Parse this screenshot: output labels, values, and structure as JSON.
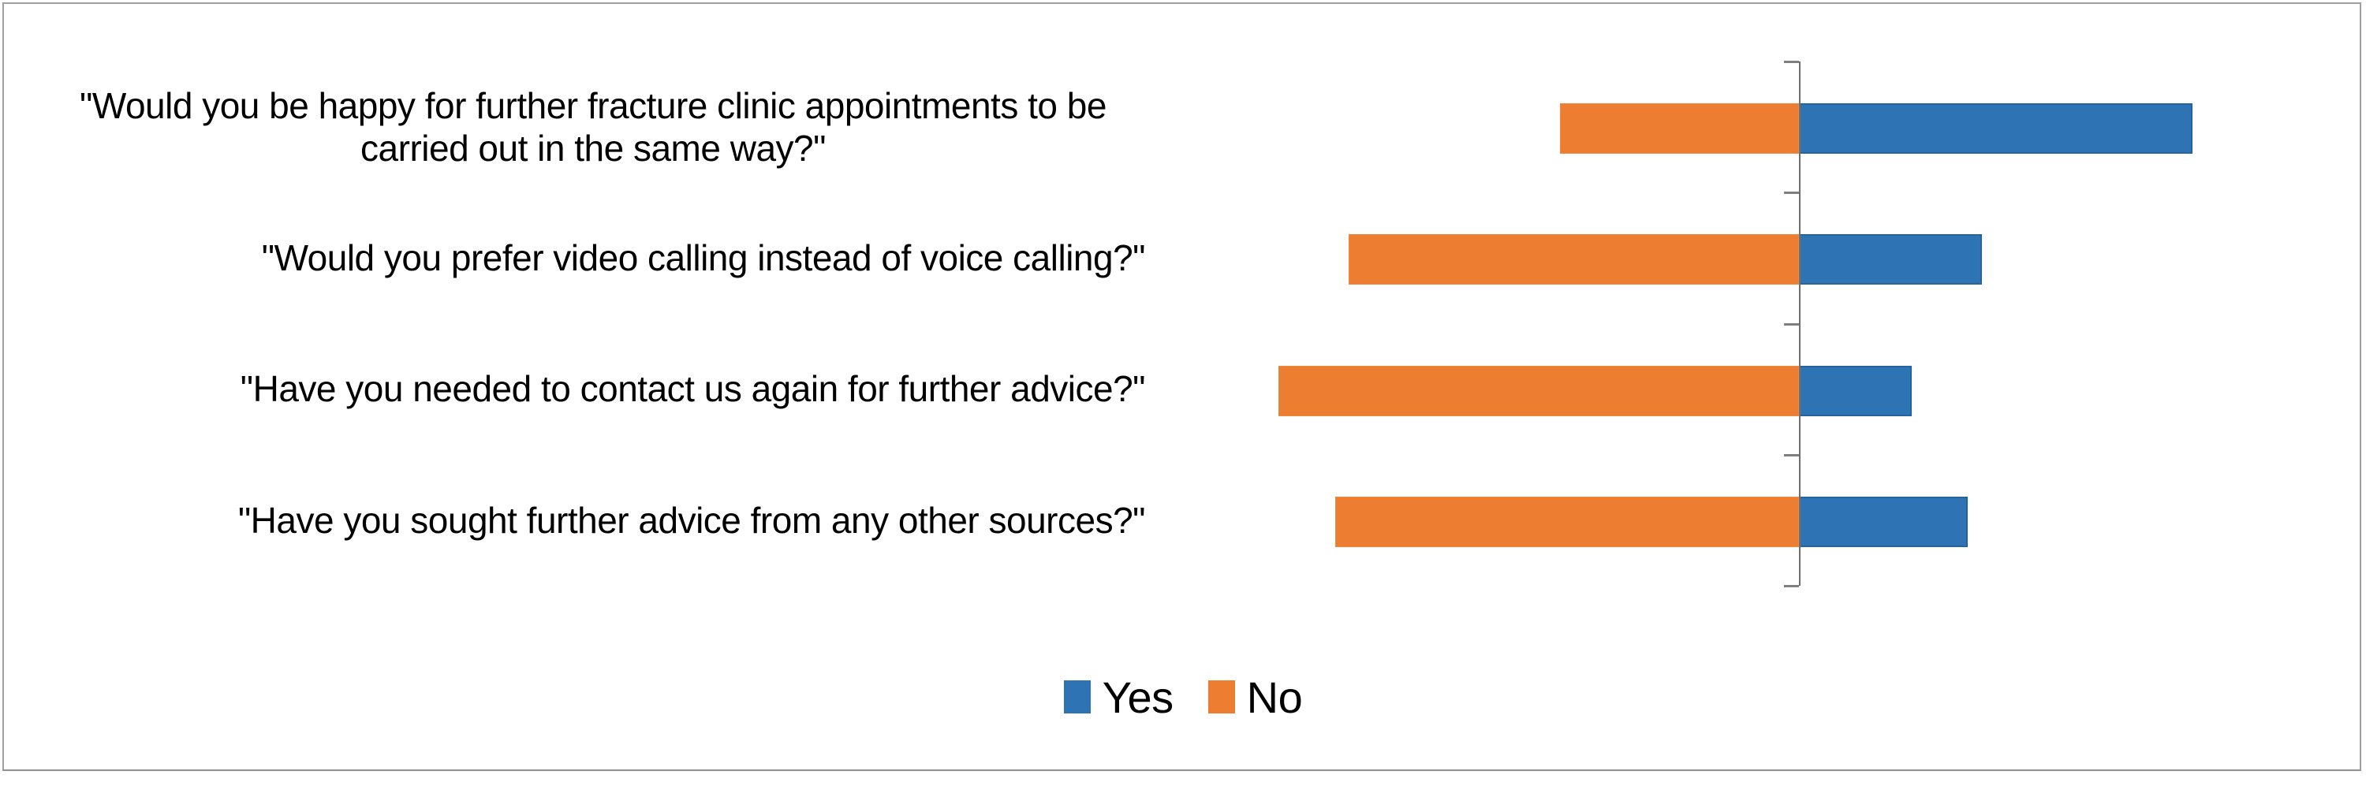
{
  "chart_data": {
    "type": "bar",
    "orientation": "horizontal_diverging",
    "title": "",
    "xlabel": "",
    "ylabel": "",
    "categories": [
      "\"Would you be happy for further fracture clinic appointments to be carried out in the same way?\"",
      "\"Would you prefer video calling instead of voice calling?\"",
      "\"Have you needed to contact us again for further advice?\"",
      "\"Have you sought further advice from any other sources?\""
    ],
    "series": [
      {
        "name": "Yes",
        "color": "#2E74B5",
        "direction": "right",
        "values": [
          28,
          13,
          8,
          12
        ]
      },
      {
        "name": "No",
        "color": "#ED7D31",
        "direction": "left",
        "values": [
          17,
          32,
          37,
          33
        ]
      }
    ],
    "baseline_value": 0,
    "axis_value_labels_visible": false,
    "gridlines": false,
    "values_estimated_from_bar_lengths": true,
    "estimated_total_per_question": 45,
    "legend": {
      "position": "bottom-center",
      "entries": [
        "Yes",
        "No"
      ]
    },
    "colors": {
      "yes": "#2E74B5",
      "no": "#ED7D31",
      "axis": "#6f6f6f",
      "frame_border": "#a0a0a0",
      "background": "#ffffff"
    }
  }
}
